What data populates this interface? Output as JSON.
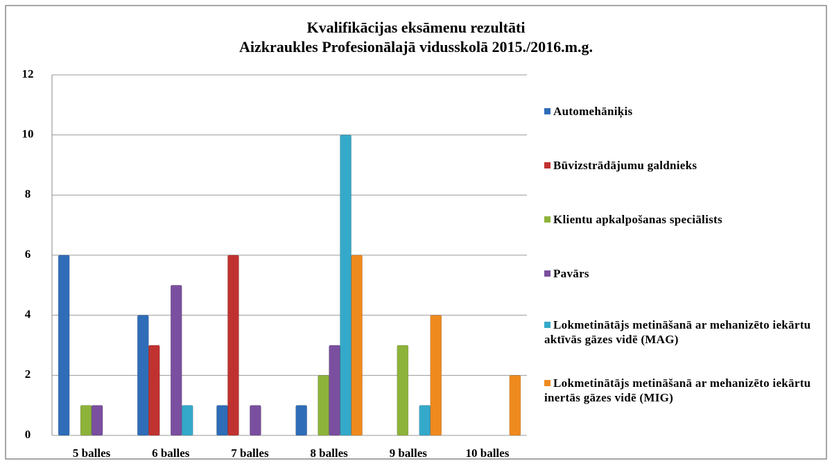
{
  "chart_data": {
    "type": "bar",
    "title": [
      "Kvalifikācijas eksāmenu rezultāti",
      "Aizkraukles Profesionālajā vidusskolā 2015./2016.m.g."
    ],
    "categories": [
      "5 balles",
      "6 balles",
      "7 balles",
      "8 balles",
      "9 balles",
      "10 balles"
    ],
    "series": [
      {
        "name": "Automehāniķis",
        "color": "#2f6db8",
        "values": [
          6,
          4,
          1,
          1,
          null,
          null
        ]
      },
      {
        "name": "Būvizstrādājumu galdnieks",
        "color": "#c0322f",
        "values": [
          null,
          3,
          6,
          null,
          null,
          null
        ]
      },
      {
        "name": "Klientu apkalpošanas speciālists",
        "color": "#8db33a",
        "values": [
          1,
          null,
          null,
          2,
          3,
          null
        ]
      },
      {
        "name": "Pavārs",
        "color": "#7a4f9f",
        "values": [
          1,
          5,
          1,
          3,
          null,
          null
        ]
      },
      {
        "name": "Lokmetinātājs metināšanā ar mehanizēto iekārtu aktīvās gāzes vidē (MAG)",
        "color": "#35a9c9",
        "values": [
          null,
          1,
          null,
          10,
          1,
          null
        ]
      },
      {
        "name": "Lokmetinātājs metināšanā ar mehanizēto iekārtu inertās gāzes vidē (MIG)",
        "color": "#ef8a1e",
        "values": [
          null,
          null,
          null,
          6,
          4,
          2
        ]
      }
    ],
    "ylim": [
      0,
      12
    ],
    "yticks": [
      0,
      2,
      4,
      6,
      8,
      10,
      12
    ],
    "grid": true,
    "legend": "right"
  }
}
